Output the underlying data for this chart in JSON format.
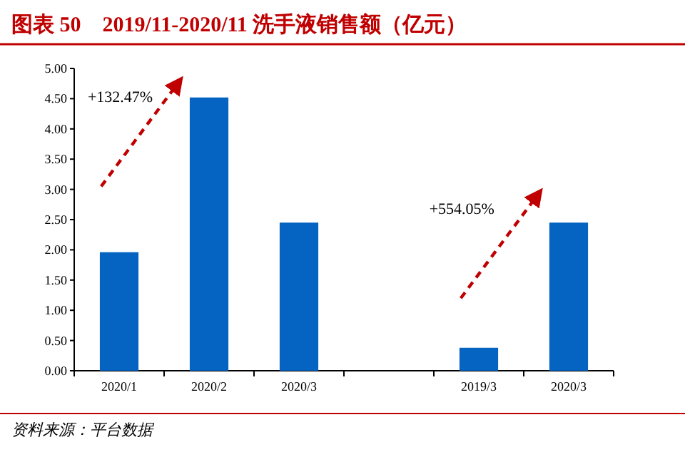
{
  "chart_data": {
    "type": "bar",
    "title": "图表 50　2019/11-2020/11 洗手液销售额（亿元）",
    "categories": [
      "2020/1",
      "2020/2",
      "2020/3",
      null,
      "2019/3",
      "2020/3"
    ],
    "values": [
      1.96,
      4.52,
      2.45,
      null,
      0.38,
      2.45
    ],
    "color": "#0563c1",
    "ylim": [
      0,
      5
    ],
    "yticks": [
      {
        "value": 0,
        "label": "0.00"
      },
      {
        "value": 0.5,
        "label": "0.50"
      },
      {
        "value": 1,
        "label": "1.00"
      },
      {
        "value": 1.5,
        "label": "1.50"
      },
      {
        "value": 2,
        "label": "2.00"
      },
      {
        "value": 2.5,
        "label": "2.50"
      },
      {
        "value": 3,
        "label": "3.00"
      },
      {
        "value": 3.5,
        "label": "3.50"
      },
      {
        "value": 4,
        "label": "4.00"
      },
      {
        "value": 4.5,
        "label": "4.50"
      },
      {
        "value": 5,
        "label": "5.00"
      }
    ],
    "annotations": [
      "+132.47%",
      "+554.05%",
      "资料来源：平台数据"
    ]
  }
}
